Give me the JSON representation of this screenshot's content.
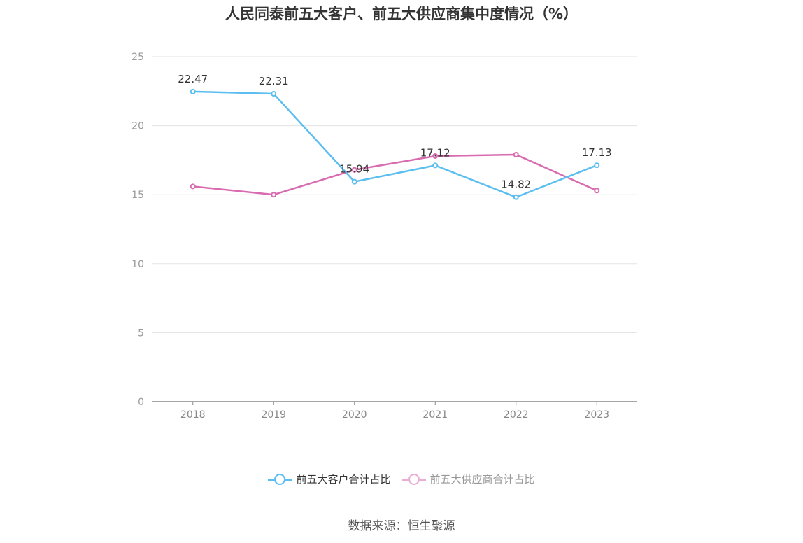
{
  "chart_data": {
    "type": "line",
    "title": "人民同泰前五大客户、前五大供应商集中度情况（%）",
    "categories": [
      "2018",
      "2019",
      "2020",
      "2021",
      "2022",
      "2023"
    ],
    "series": [
      {
        "name": "前五大客户合计占比",
        "color": "#5bbef0",
        "values": [
          22.47,
          22.31,
          15.94,
          17.12,
          14.82,
          17.13
        ],
        "show_labels": true
      },
      {
        "name": "前五大供应商合计占比",
        "color": "#d96bb0",
        "values": [
          15.6,
          15.0,
          16.8,
          17.8,
          17.9,
          15.3
        ],
        "show_labels": false
      }
    ],
    "ylim": [
      0,
      25
    ],
    "yticks": [
      0,
      5,
      10,
      15,
      20,
      25
    ],
    "grid": true,
    "legend_position": "bottom-center"
  },
  "source": "数据来源：恒生聚源"
}
